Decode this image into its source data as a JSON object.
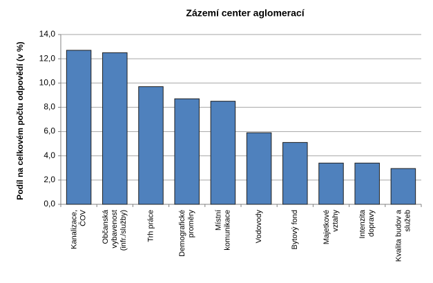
{
  "chart_data": {
    "type": "bar",
    "title": "Zázemí center aglomerací",
    "y_label": "Podíl na celkovém počtu odpovědí (v %)",
    "categories": [
      [
        "Kanalizace,",
        "ČOV"
      ],
      [
        "Občanská",
        "vybavenost",
        "(infr./služby)"
      ],
      [
        "Trh práce"
      ],
      [
        "Demografické",
        "proměry"
      ],
      [
        "Místní",
        "komunikace"
      ],
      [
        "Vodovody"
      ],
      [
        "Bytový fond"
      ],
      [
        "Majetkové",
        "vztahy"
      ],
      [
        "Intenzita",
        "dopravy"
      ],
      [
        "Kvalita budov a",
        "služeb"
      ]
    ],
    "values": [
      12.7,
      12.5,
      9.7,
      8.7,
      8.5,
      5.9,
      5.1,
      3.4,
      3.4,
      2.95
    ],
    "color": "#4f81bd",
    "ylim": [
      0,
      14
    ],
    "yticks": [
      {
        "value": 0,
        "label": "0,0"
      },
      {
        "value": 2,
        "label": "2,0"
      },
      {
        "value": 4,
        "label": "4,0"
      },
      {
        "value": 6,
        "label": "6,0"
      },
      {
        "value": 8,
        "label": "8,0"
      },
      {
        "value": 10,
        "label": "10,0"
      },
      {
        "value": 12,
        "label": "12,0"
      },
      {
        "value": 14,
        "label": "14,0"
      }
    ],
    "grid": true
  }
}
